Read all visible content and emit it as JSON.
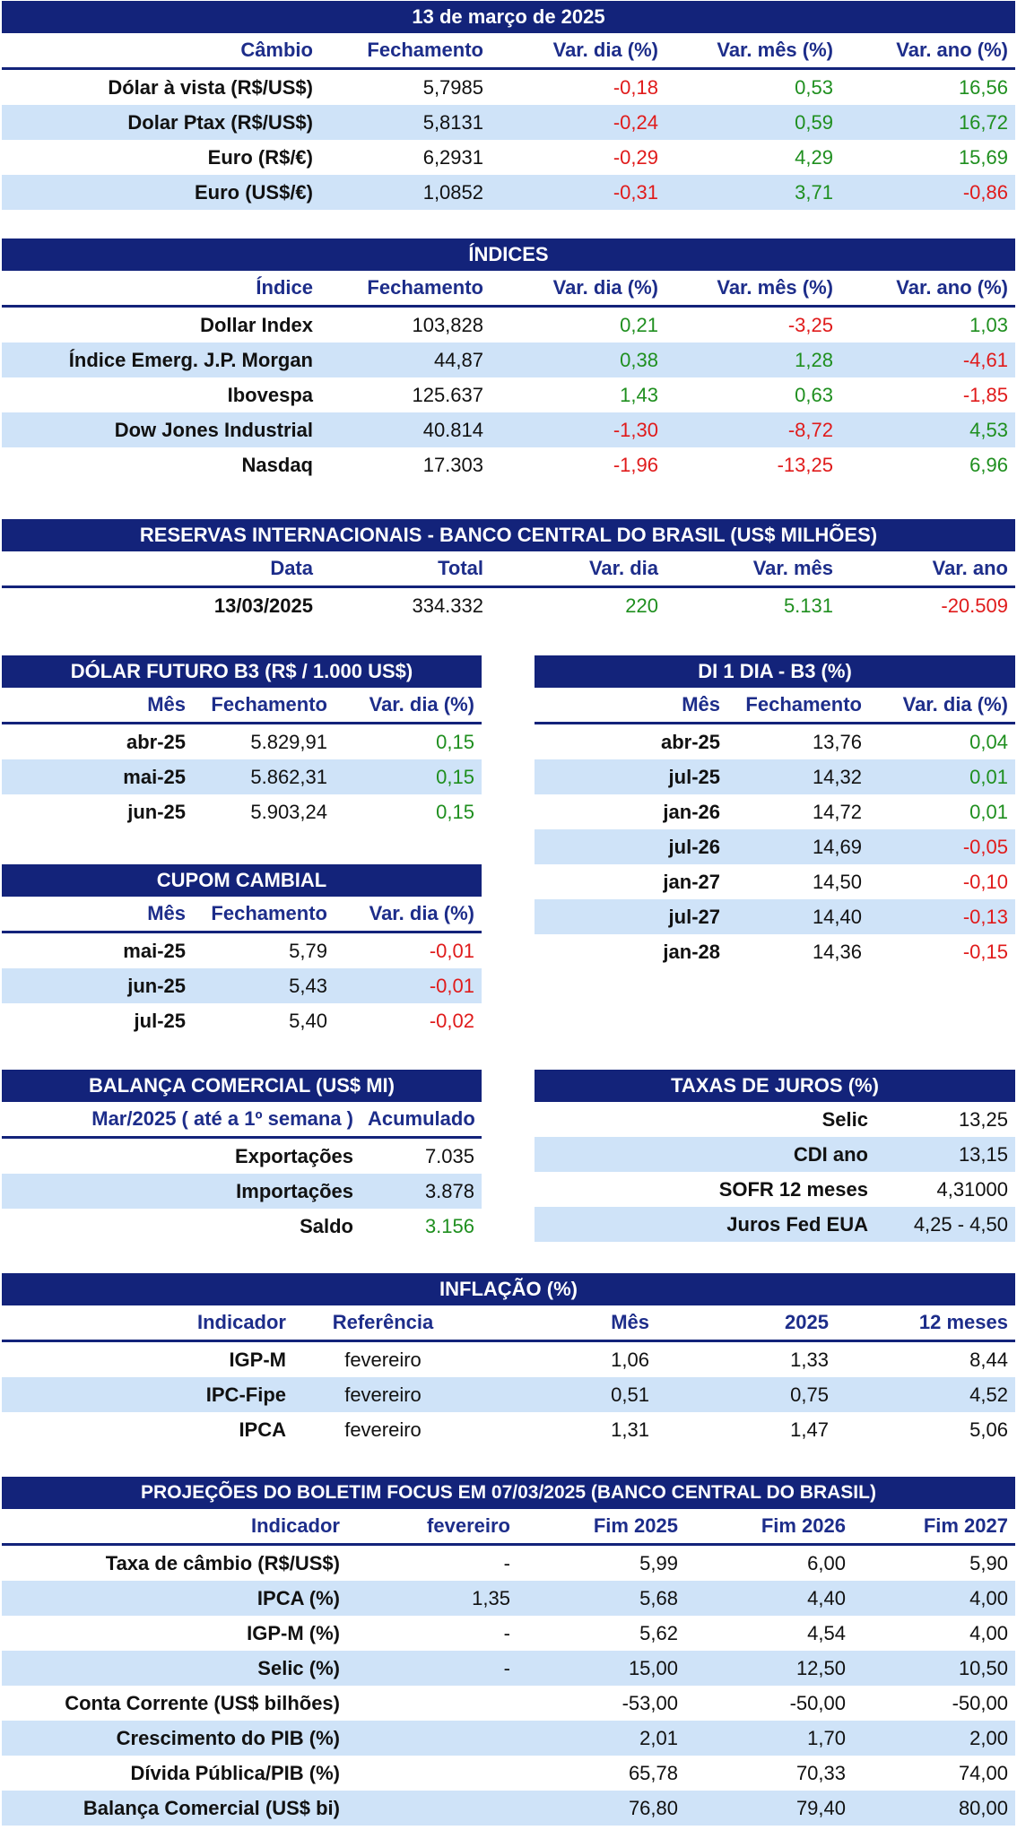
{
  "cambio": {
    "title": "13 de março de 2025",
    "headers": [
      "Câmbio",
      "Fechamento",
      "Var. dia (%)",
      "Var. mês (%)",
      "Var. ano (%)"
    ],
    "rows": [
      [
        "Dólar à vista (R$/US$)",
        "5,7985",
        "-0,18",
        "0,53",
        "16,56"
      ],
      [
        "Dolar Ptax (R$/US$)",
        "5,8131",
        "-0,24",
        "0,59",
        "16,72"
      ],
      [
        "Euro (R$/€)",
        "6,2931",
        "-0,29",
        "4,29",
        "15,69"
      ],
      [
        "Euro (US$/€)",
        "1,0852",
        "-0,31",
        "3,71",
        "-0,86"
      ]
    ]
  },
  "indices": {
    "title": "ÍNDICES",
    "headers": [
      "Índice",
      "Fechamento",
      "Var. dia (%)",
      "Var. mês (%)",
      "Var. ano (%)"
    ],
    "rows": [
      [
        "Dollar Index",
        "103,828",
        "0,21",
        "-3,25",
        "1,03"
      ],
      [
        "Índice Emerg. J.P. Morgan",
        "44,87",
        "0,38",
        "1,28",
        "-4,61"
      ],
      [
        "Ibovespa",
        "125.637",
        "1,43",
        "0,63",
        "-1,85"
      ],
      [
        "Dow Jones Industrial",
        "40.814",
        "-1,30",
        "-8,72",
        "4,53"
      ],
      [
        "Nasdaq",
        "17.303",
        "-1,96",
        "-13,25",
        "6,96"
      ]
    ]
  },
  "reservas": {
    "title": "RESERVAS INTERNACIONAIS - BANCO CENTRAL DO BRASIL (US$ MILHÕES)",
    "headers": [
      "Data",
      "Total",
      "Var. dia",
      "Var. mês",
      "Var. ano"
    ],
    "rows": [
      [
        "13/03/2025",
        "334.332",
        "220",
        "5.131",
        "-20.509"
      ]
    ]
  },
  "dolar_futuro": {
    "title": "DÓLAR FUTURO B3 (R$ / 1.000 US$)",
    "headers": [
      "Mês",
      "Fechamento",
      "Var. dia (%)"
    ],
    "rows": [
      [
        "abr-25",
        "5.829,91",
        "0,15"
      ],
      [
        "mai-25",
        "5.862,31",
        "0,15"
      ],
      [
        "jun-25",
        "5.903,24",
        "0,15"
      ]
    ]
  },
  "di1": {
    "title": "DI 1 DIA - B3 (%)",
    "headers": [
      "Mês",
      "Fechamento",
      "Var. dia (%)"
    ],
    "rows": [
      [
        "abr-25",
        "13,76",
        "0,04"
      ],
      [
        "jul-25",
        "14,32",
        "0,01"
      ],
      [
        "jan-26",
        "14,72",
        "0,01"
      ],
      [
        "jul-26",
        "14,69",
        "-0,05"
      ],
      [
        "jan-27",
        "14,50",
        "-0,10"
      ],
      [
        "jul-27",
        "14,40",
        "-0,13"
      ],
      [
        "jan-28",
        "14,36",
        "-0,15"
      ]
    ]
  },
  "cupom": {
    "title": "CUPOM CAMBIAL",
    "headers": [
      "Mês",
      "Fechamento",
      "Var. dia (%)"
    ],
    "rows": [
      [
        "mai-25",
        "5,79",
        "-0,01"
      ],
      [
        "jun-25",
        "5,43",
        "-0,01"
      ],
      [
        "jul-25",
        "5,40",
        "-0,02"
      ]
    ]
  },
  "balanca": {
    "title": "BALANÇA COMERCIAL (US$ MI)",
    "headers": [
      "Mar/2025 ( até a 1º semana )",
      "Acumulado"
    ],
    "rows": [
      [
        "Exportações",
        "7.035"
      ],
      [
        "Importações",
        "3.878"
      ],
      [
        "Saldo",
        "3.156"
      ]
    ]
  },
  "juros": {
    "title": "TAXAS DE JUROS (%)",
    "rows": [
      [
        "Selic",
        "13,25"
      ],
      [
        "CDI ano",
        "13,15"
      ],
      [
        "SOFR 12 meses",
        "4,31000"
      ],
      [
        "Juros Fed EUA",
        "4,25 - 4,50"
      ]
    ]
  },
  "inflacao": {
    "title": "INFLAÇÃO (%)",
    "headers": [
      "Indicador",
      "Referência",
      "Mês",
      "2025",
      "12 meses"
    ],
    "rows": [
      [
        "IGP-M",
        "fevereiro",
        "1,06",
        "1,33",
        "8,44"
      ],
      [
        "IPC-Fipe",
        "fevereiro",
        "0,51",
        "0,75",
        "4,52"
      ],
      [
        "IPCA",
        "fevereiro",
        "1,31",
        "1,47",
        "5,06"
      ]
    ]
  },
  "focus": {
    "title": "PROJEÇÕES DO BOLETIM FOCUS EM 07/03/2025 (BANCO CENTRAL DO BRASIL)",
    "headers": [
      "Indicador",
      "fevereiro",
      "Fim 2025",
      "Fim 2026",
      "Fim 2027"
    ],
    "rows": [
      [
        "Taxa de câmbio (R$/US$)",
        "-",
        "5,99",
        "6,00",
        "5,90"
      ],
      [
        "IPCA (%)",
        "1,35",
        "5,68",
        "4,40",
        "4,00"
      ],
      [
        "IGP-M (%)",
        "-",
        "5,62",
        "4,54",
        "4,00"
      ],
      [
        "Selic (%)",
        "-",
        "15,00",
        "12,50",
        "10,50"
      ],
      [
        "Conta Corrente (US$ bilhões)",
        "",
        "-53,00",
        "-50,00",
        "-50,00"
      ],
      [
        "Crescimento do PIB (%)",
        "",
        "2,01",
        "1,70",
        "2,00"
      ],
      [
        "Dívida Pública/PIB (%)",
        "",
        "65,78",
        "70,33",
        "74,00"
      ],
      [
        "Balança Comercial (US$ bi)",
        "",
        "76,80",
        "79,40",
        "80,00"
      ]
    ]
  },
  "colors": {
    "header_bg": "#13237a",
    "row_alt": "#cfe3f8",
    "positive": "#1f8f1f",
    "negative": "#e01b1b"
  }
}
